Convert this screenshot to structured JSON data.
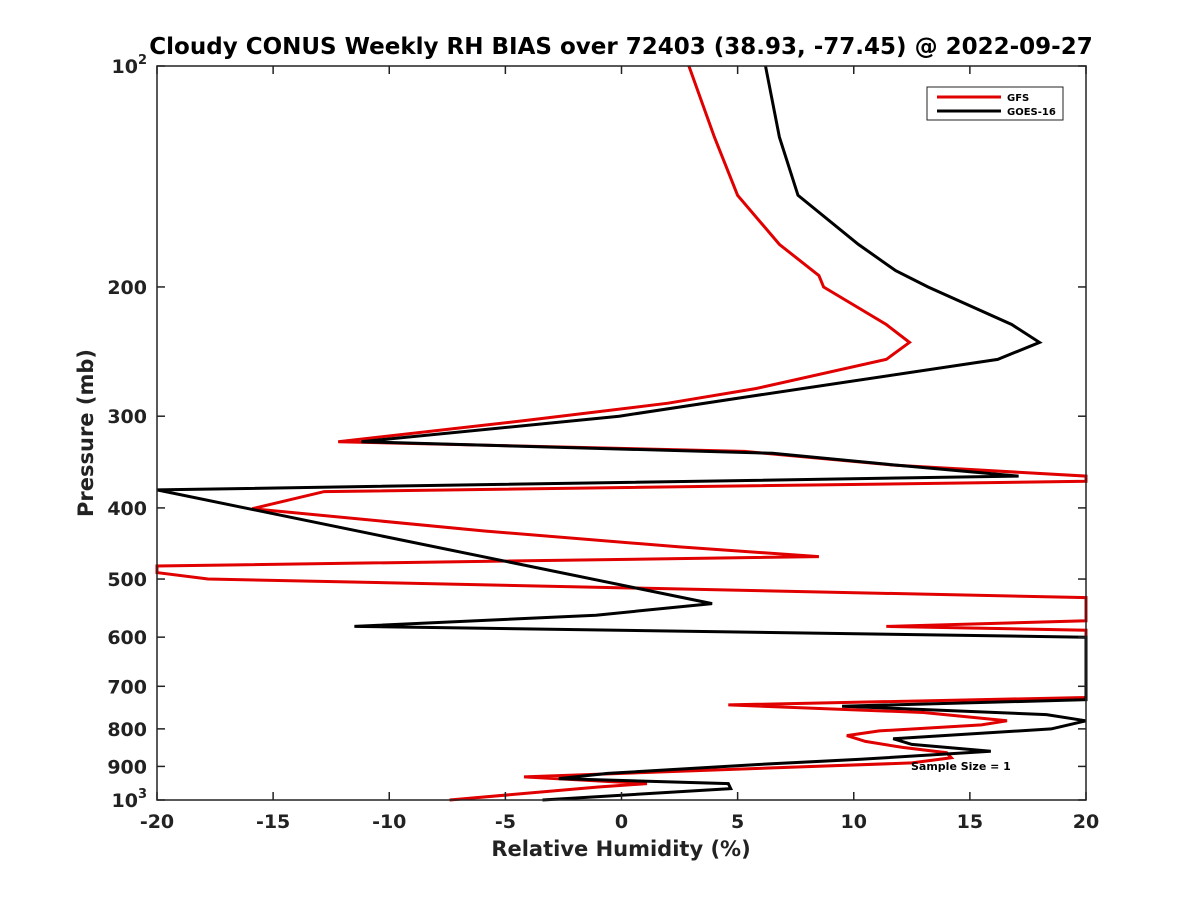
{
  "chart_data": {
    "type": "line",
    "title": "Cloudy CONUS Weekly RH BIAS over 72403 (38.93, -77.45) @ 2022-09-27",
    "xlabel": "Relative Humidity (%)",
    "ylabel": "Pressure (mb)",
    "xlim": [
      -20,
      20
    ],
    "ylim": [
      100,
      1000
    ],
    "y_scale": "log",
    "y_reversed": true,
    "grid": false,
    "legend_position": "top-right",
    "x_ticks": [
      -20,
      -15,
      -10,
      -5,
      0,
      5,
      10,
      15,
      20
    ],
    "y_ticks": [
      {
        "value": 100,
        "base": "10",
        "exp": "2"
      },
      {
        "value": 200,
        "label": "200"
      },
      {
        "value": 300,
        "label": "300"
      },
      {
        "value": 400,
        "label": "400"
      },
      {
        "value": 500,
        "label": "500"
      },
      {
        "value": 600,
        "label": "600"
      },
      {
        "value": 700,
        "label": "700"
      },
      {
        "value": 800,
        "label": "800"
      },
      {
        "value": 900,
        "label": "900"
      },
      {
        "value": 1000,
        "base": "10",
        "exp": "3"
      }
    ],
    "annotation": "Sample Size = 1",
    "series": [
      {
        "name": "GFS",
        "color": "#e00000",
        "points": [
          [
            2.9,
            100
          ],
          [
            4.0,
            125
          ],
          [
            5.0,
            150
          ],
          [
            6.8,
            175
          ],
          [
            8.5,
            193
          ],
          [
            8.7,
            200
          ],
          [
            11.4,
            225
          ],
          [
            12.4,
            238
          ],
          [
            11.4,
            251
          ],
          [
            5.8,
            275
          ],
          [
            2.0,
            288
          ],
          [
            -4.1,
            304
          ],
          [
            -12.2,
            325
          ],
          [
            5.3,
            335
          ],
          [
            11.8,
            350
          ],
          [
            20.0,
            362
          ],
          [
            20.0,
            368
          ],
          [
            -12.8,
            380
          ],
          [
            -15.9,
            401
          ],
          [
            -5.9,
            430
          ],
          [
            2.5,
            452
          ],
          [
            8.5,
            466
          ],
          [
            -20.0,
            480
          ],
          [
            -20.0,
            490
          ],
          [
            -17.8,
            500
          ],
          [
            20.0,
            530
          ],
          [
            20.0,
            570
          ],
          [
            11.4,
            580
          ],
          [
            20.0,
            587
          ],
          [
            20.0,
            725
          ],
          [
            4.6,
            742
          ],
          [
            13.0,
            760
          ],
          [
            16.6,
            780
          ],
          [
            15.5,
            790
          ],
          [
            11.1,
            805
          ],
          [
            9.7,
            817
          ],
          [
            10.5,
            832
          ],
          [
            12.1,
            848
          ],
          [
            14.0,
            862
          ],
          [
            14.2,
            876
          ],
          [
            12.5,
            890
          ],
          [
            -4.2,
            930
          ],
          [
            1.1,
            950
          ],
          [
            -1.0,
            960
          ],
          [
            -7.4,
            1000
          ]
        ]
      },
      {
        "name": "GOES-16",
        "color": "#000000",
        "points": [
          [
            6.2,
            100
          ],
          [
            6.8,
            125
          ],
          [
            7.6,
            150
          ],
          [
            10.2,
            175
          ],
          [
            11.8,
            190
          ],
          [
            13.2,
            200
          ],
          [
            16.8,
            225
          ],
          [
            18.0,
            238
          ],
          [
            16.2,
            251
          ],
          [
            5.5,
            282
          ],
          [
            -0.1,
            300
          ],
          [
            -11.2,
            325
          ],
          [
            6.5,
            337
          ],
          [
            11.9,
            350
          ],
          [
            17.1,
            362
          ],
          [
            -20.0,
            378
          ],
          [
            3.9,
            540
          ],
          [
            -1.1,
            560
          ],
          [
            -11.5,
            580
          ],
          [
            20.0,
            600
          ],
          [
            20.0,
            730
          ],
          [
            9.5,
            745
          ],
          [
            18.3,
            765
          ],
          [
            20.0,
            780
          ],
          [
            18.5,
            800
          ],
          [
            11.7,
            825
          ],
          [
            12.5,
            840
          ],
          [
            15.9,
            858
          ],
          [
            10.3,
            880
          ],
          [
            5.8,
            895
          ],
          [
            -0.6,
            920
          ],
          [
            -2.7,
            935
          ],
          [
            4.6,
            950
          ],
          [
            4.7,
            965
          ],
          [
            -3.4,
            1000
          ]
        ]
      }
    ]
  }
}
